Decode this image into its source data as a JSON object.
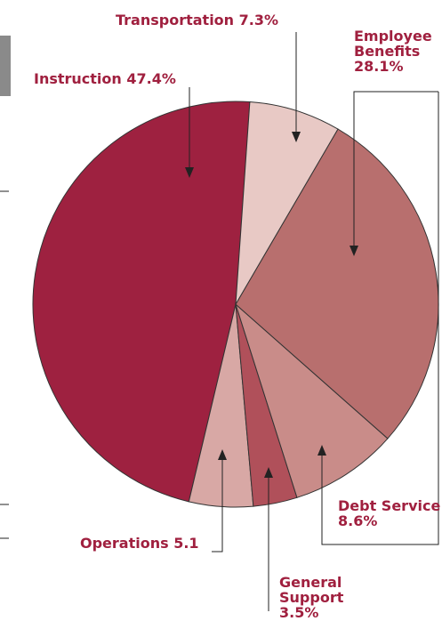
{
  "chart_data": {
    "type": "pie",
    "categories": [
      "Transportation",
      "Employee Benefits",
      "Debt Service",
      "General Support",
      "Operations",
      "Instruction"
    ],
    "values": [
      7.3,
      28.1,
      8.6,
      3.5,
      5.1,
      47.4
    ],
    "value_labels": [
      "7.3%",
      "28.1%",
      "8.6%",
      "3.5%",
      "5.1",
      "47.4%"
    ],
    "colors": [
      "#e8c9c5",
      "#b86f6e",
      "#c98c89",
      "#b0505a",
      "#d8a8a5",
      "#9e2140"
    ]
  }
}
